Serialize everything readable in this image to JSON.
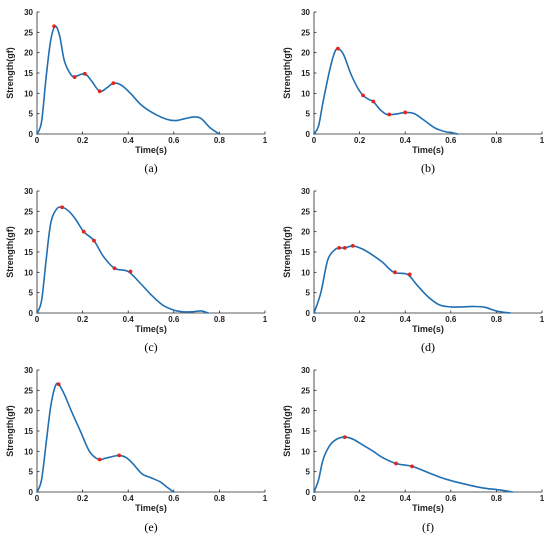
{
  "figure": {
    "colors": {
      "curve": "#1f6fb2",
      "marker": "#e8231a",
      "axis": "#262626"
    }
  },
  "chart_data": [
    {
      "type": "line",
      "panel_label": "(a)",
      "xlabel": "Time(s)",
      "ylabel": "Strength(gf)",
      "xlim": [
        0,
        1
      ],
      "ylim": [
        0,
        30
      ],
      "xticks": [
        "0",
        "0.2",
        "0.4",
        "0.6",
        "0.8",
        "1"
      ],
      "yticks": [
        "0",
        "5",
        "10",
        "15",
        "20",
        "25",
        "30"
      ],
      "grid": false,
      "series": [
        {
          "x": [
            0,
            0.02,
            0.04,
            0.06,
            0.08,
            0.1,
            0.12,
            0.15,
            0.17,
            0.21,
            0.24,
            0.275,
            0.31,
            0.335,
            0.37,
            0.41,
            0.46,
            0.52,
            0.57,
            0.61,
            0.65,
            0.69,
            0.72,
            0.76,
            0.8
          ],
          "y": [
            0,
            3,
            14,
            23,
            26.5,
            24,
            18,
            14.5,
            14.2,
            14.8,
            13,
            10.5,
            11.5,
            12.5,
            12,
            10,
            7,
            4.8,
            3.6,
            3.3,
            3.8,
            4.2,
            3.8,
            1.5,
            0
          ]
        }
      ],
      "markers": {
        "x": [
          0.075,
          0.165,
          0.21,
          0.275,
          0.335
        ],
        "y": [
          26.5,
          14,
          14.8,
          10.5,
          12.5
        ]
      }
    },
    {
      "type": "line",
      "panel_label": "(b)",
      "xlabel": "Time(s)",
      "ylabel": "Strength(gf)",
      "xlim": [
        0,
        1
      ],
      "ylim": [
        0,
        30
      ],
      "xticks": [
        "0",
        "0.2",
        "0.4",
        "0.6",
        "0.8",
        "1"
      ],
      "yticks": [
        "0",
        "5",
        "10",
        "15",
        "20",
        "25",
        "30"
      ],
      "grid": false,
      "series": [
        {
          "x": [
            0,
            0.02,
            0.04,
            0.07,
            0.09,
            0.105,
            0.13,
            0.16,
            0.19,
            0.215,
            0.24,
            0.26,
            0.29,
            0.32,
            0.36,
            0.4,
            0.44,
            0.48,
            0.53,
            0.58,
            0.6,
            0.63
          ],
          "y": [
            0,
            2,
            8,
            16,
            20,
            21,
            19.5,
            15,
            11.5,
            9.5,
            8.5,
            8,
            6,
            4.8,
            4.9,
            5.3,
            5,
            3.5,
            1.5,
            0.5,
            0.4,
            0
          ]
        }
      ],
      "markers": {
        "x": [
          0.105,
          0.215,
          0.26,
          0.33,
          0.4
        ],
        "y": [
          21,
          9.5,
          8,
          4.8,
          5.3
        ]
      }
    },
    {
      "type": "line",
      "panel_label": "(c)",
      "xlabel": "Time(s)",
      "ylabel": "Strength(gf)",
      "xlim": [
        0,
        1
      ],
      "ylim": [
        0,
        30
      ],
      "xticks": [
        "0",
        "0.2",
        "0.4",
        "0.6",
        "0.8",
        "1"
      ],
      "yticks": [
        "0",
        "5",
        "10",
        "15",
        "20",
        "25",
        "30"
      ],
      "grid": false,
      "series": [
        {
          "x": [
            0,
            0.02,
            0.04,
            0.06,
            0.085,
            0.11,
            0.14,
            0.17,
            0.205,
            0.25,
            0.29,
            0.34,
            0.4,
            0.45,
            0.5,
            0.55,
            0.6,
            0.64,
            0.68,
            0.72,
            0.75
          ],
          "y": [
            0,
            3,
            13,
            22,
            25.5,
            26,
            25,
            23,
            20,
            17.8,
            14,
            11,
            10.2,
            7.5,
            4.5,
            2,
            0.7,
            0.3,
            0.3,
            0.5,
            0
          ]
        }
      ],
      "markers": {
        "x": [
          0.11,
          0.205,
          0.25,
          0.34,
          0.41
        ],
        "y": [
          26,
          20,
          17.8,
          11,
          10.2
        ]
      }
    },
    {
      "type": "line",
      "panel_label": "(d)",
      "xlabel": "Time(s)",
      "ylabel": "Strength(gf)",
      "xlim": [
        0,
        1
      ],
      "ylim": [
        0,
        30
      ],
      "xticks": [
        "0",
        "0.2",
        "0.4",
        "0.6",
        "0.8",
        "1"
      ],
      "yticks": [
        "0",
        "5",
        "10",
        "15",
        "20",
        "25",
        "30"
      ],
      "grid": false,
      "series": [
        {
          "x": [
            0,
            0.03,
            0.06,
            0.09,
            0.11,
            0.135,
            0.17,
            0.21,
            0.25,
            0.3,
            0.35,
            0.41,
            0.45,
            0.5,
            0.55,
            0.6,
            0.65,
            0.7,
            0.75,
            0.8,
            0.86
          ],
          "y": [
            0,
            5,
            13,
            15.5,
            16,
            16,
            16.5,
            15.8,
            14.5,
            12.5,
            10,
            9.5,
            7,
            4,
            2,
            1.5,
            1.5,
            1.6,
            1.4,
            0.5,
            0
          ]
        }
      ],
      "markers": {
        "x": [
          0.11,
          0.135,
          0.17,
          0.355,
          0.42
        ],
        "y": [
          16,
          16,
          16.5,
          10,
          9.5
        ]
      }
    },
    {
      "type": "line",
      "panel_label": "(e)",
      "xlabel": "Time(s)",
      "ylabel": "Strength(gf)",
      "xlim": [
        0,
        1
      ],
      "ylim": [
        0,
        30
      ],
      "xticks": [
        "0",
        "0.2",
        "0.4",
        "0.6",
        "0.8",
        "1"
      ],
      "yticks": [
        "0",
        "5",
        "10",
        "15",
        "20",
        "25",
        "30"
      ],
      "grid": false,
      "series": [
        {
          "x": [
            0,
            0.02,
            0.04,
            0.06,
            0.08,
            0.095,
            0.12,
            0.15,
            0.19,
            0.23,
            0.27,
            0.3,
            0.33,
            0.36,
            0.39,
            0.42,
            0.46,
            0.5,
            0.54,
            0.57,
            0.6
          ],
          "y": [
            0,
            3,
            12,
            21,
            26,
            26.5,
            24,
            20,
            15,
            10,
            8,
            8.3,
            8.7,
            9,
            8.5,
            7,
            4.5,
            3.5,
            2.5,
            1.2,
            0
          ]
        }
      ],
      "markers": {
        "x": [
          0.095,
          0.275,
          0.36
        ],
        "y": [
          26.5,
          8,
          9
        ]
      }
    },
    {
      "type": "line",
      "panel_label": "(f)",
      "xlabel": "Time(s)",
      "ylabel": "Strength(gf)",
      "xlim": [
        0,
        1
      ],
      "ylim": [
        0,
        30
      ],
      "xticks": [
        "0",
        "0.2",
        "0.4",
        "0.6",
        "0.8",
        "1"
      ],
      "yticks": [
        "0",
        "5",
        "10",
        "15",
        "20",
        "25",
        "30"
      ],
      "grid": false,
      "series": [
        {
          "x": [
            0,
            0.02,
            0.04,
            0.07,
            0.1,
            0.135,
            0.17,
            0.21,
            0.26,
            0.3,
            0.36,
            0.43,
            0.5,
            0.56,
            0.62,
            0.68,
            0.74,
            0.8,
            0.84,
            0.87
          ],
          "y": [
            0,
            3,
            8,
            11.5,
            13,
            13.5,
            13,
            11.7,
            10,
            8.5,
            7,
            6.3,
            4.8,
            3.5,
            2.5,
            1.7,
            1,
            0.6,
            0.3,
            0
          ]
        }
      ],
      "markers": {
        "x": [
          0.135,
          0.36,
          0.43
        ],
        "y": [
          13.5,
          7,
          6.3
        ]
      }
    }
  ]
}
